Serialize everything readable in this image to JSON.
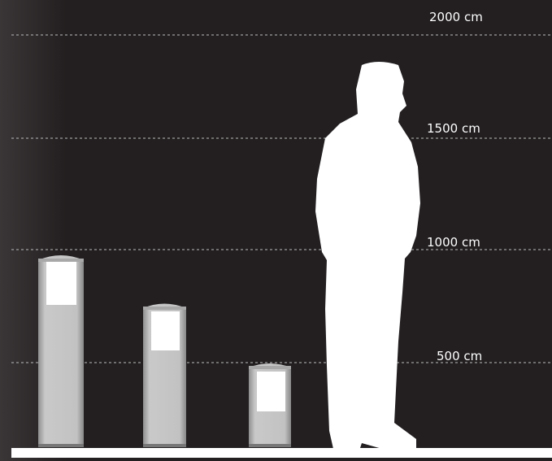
{
  "scale_labels": [
    "2000 cm",
    "1500 cm",
    "1000 cm",
    "500 cm"
  ]
}
